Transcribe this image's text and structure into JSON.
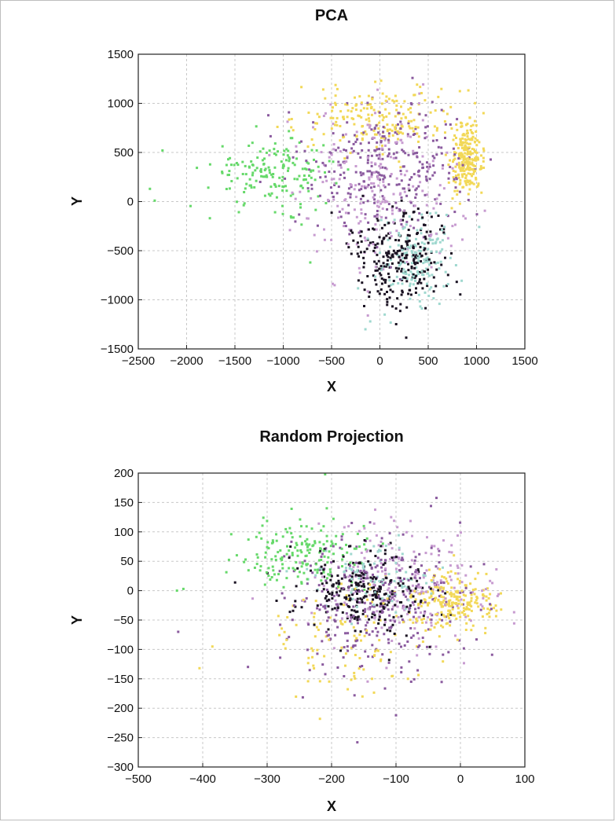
{
  "colors": {
    "green": "#66d96a",
    "yellow": "#f2d857",
    "purple": "#8a5a9e",
    "lavender": "#c79bd0",
    "black": "#1a1222",
    "teal": "#9fd8cf"
  },
  "chart_data": [
    {
      "type": "scatter",
      "title": "PCA",
      "xlabel": "X",
      "ylabel": "Y",
      "xlim": [
        -2500,
        1500
      ],
      "ylim": [
        -1500,
        1500
      ],
      "xticks": [
        -2500,
        -2000,
        -1500,
        -1000,
        -500,
        0,
        500,
        1000,
        1500
      ],
      "yticks": [
        -1500,
        -1000,
        -500,
        0,
        500,
        1000,
        1500
      ],
      "xtick_labels": [
        "−2500",
        "−2000",
        "−1500",
        "−1000",
        "−500",
        "0",
        "500",
        "1000",
        "1500"
      ],
      "ytick_labels": [
        "−1500",
        "−1000",
        "−500",
        "0",
        "500",
        "1000",
        "1500"
      ],
      "grid": true,
      "clusters": [
        {
          "color_key": "green",
          "cx": -1100,
          "cy": 300,
          "sx": 330,
          "sy": 170,
          "n": 170,
          "points": [
            [
              -2250,
              520
            ],
            [
              -2380,
              130
            ],
            [
              -2330,
              10
            ],
            [
              -720,
              -620
            ]
          ]
        },
        {
          "color_key": "yellow",
          "cx": 900,
          "cy": 420,
          "sx": 80,
          "sy": 170,
          "n": 230,
          "points": []
        },
        {
          "color_key": "yellow",
          "cx": 0,
          "cy": 850,
          "sx": 420,
          "sy": 170,
          "n": 200,
          "points": []
        },
        {
          "color_key": "purple",
          "cx": 100,
          "cy": 350,
          "sx": 420,
          "sy": 340,
          "n": 300,
          "points": []
        },
        {
          "color_key": "lavender",
          "cx": 0,
          "cy": 100,
          "sx": 420,
          "sy": 420,
          "n": 220,
          "points": []
        },
        {
          "color_key": "black",
          "cx": 200,
          "cy": -550,
          "sx": 260,
          "sy": 260,
          "n": 260,
          "points": []
        },
        {
          "color_key": "teal",
          "cx": 400,
          "cy": -600,
          "sx": 200,
          "sy": 240,
          "n": 160,
          "points": [
            [
              -150,
              -1300
            ],
            [
              -100,
              -1220
            ],
            [
              50,
              -1150
            ]
          ]
        }
      ]
    },
    {
      "type": "scatter",
      "title": "Random Projection",
      "xlabel": "X",
      "ylabel": "Y",
      "xlim": [
        -500,
        100
      ],
      "ylim": [
        -300,
        200
      ],
      "xticks": [
        -500,
        -400,
        -300,
        -200,
        -100,
        0,
        100
      ],
      "yticks": [
        -300,
        -250,
        -200,
        -150,
        -100,
        -50,
        0,
        50,
        100,
        150,
        200
      ],
      "xtick_labels": [
        "−500",
        "−400",
        "−300",
        "−200",
        "−100",
        "0",
        "100"
      ],
      "ytick_labels": [
        "−300",
        "−250",
        "−200",
        "−150",
        "−100",
        "−50",
        "0",
        "50",
        "100",
        "150",
        "200"
      ],
      "grid": true,
      "clusters": [
        {
          "color_key": "green",
          "cx": -240,
          "cy": 60,
          "sx": 50,
          "sy": 30,
          "n": 170,
          "points": [
            [
              -440,
              0
            ],
            [
              -430,
              3
            ],
            [
              -210,
              198
            ]
          ]
        },
        {
          "color_key": "yellow",
          "cx": -10,
          "cy": -20,
          "sx": 30,
          "sy": 25,
          "n": 220,
          "points": [
            [
              -405,
              -132
            ],
            [
              -385,
              -95
            ],
            [
              -218,
              -218
            ]
          ]
        },
        {
          "color_key": "yellow",
          "cx": -170,
          "cy": -80,
          "sx": 70,
          "sy": 50,
          "n": 110,
          "points": []
        },
        {
          "color_key": "purple",
          "cx": -130,
          "cy": -20,
          "sx": 70,
          "sy": 55,
          "n": 320,
          "points": [
            [
              -160,
              -258
            ],
            [
              -100,
              -212
            ]
          ]
        },
        {
          "color_key": "lavender",
          "cx": -90,
          "cy": 0,
          "sx": 70,
          "sy": 55,
          "n": 200,
          "points": []
        },
        {
          "color_key": "black",
          "cx": -150,
          "cy": 0,
          "sx": 50,
          "sy": 35,
          "n": 260,
          "points": []
        },
        {
          "color_key": "teal",
          "cx": -130,
          "cy": 20,
          "sx": 45,
          "sy": 30,
          "n": 90,
          "points": []
        }
      ]
    }
  ]
}
